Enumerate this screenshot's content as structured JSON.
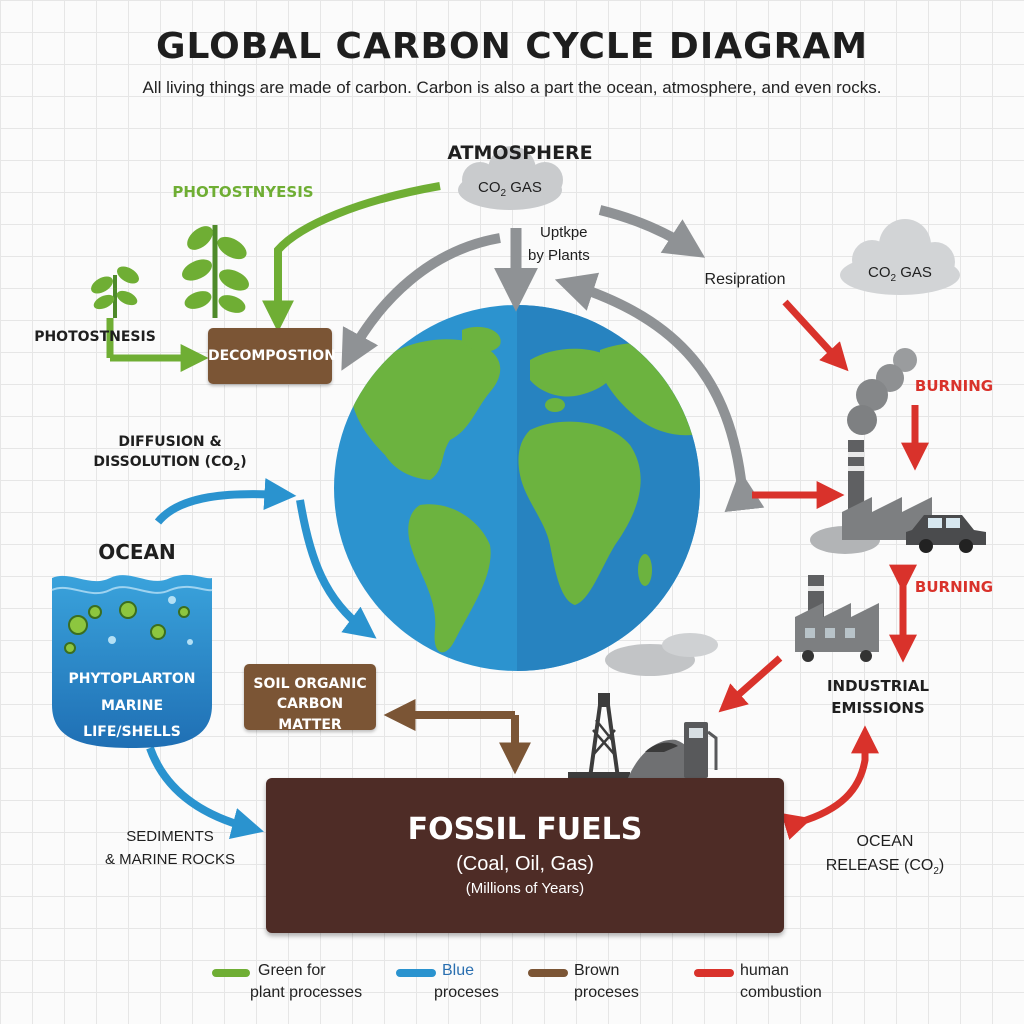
{
  "header": {
    "title": "GLOBAL CARBON CYCLE DIAGRAM",
    "subtitle": "All living things are made of carbon. Carbon is also a part the ocean, atmosphere, and even rocks."
  },
  "atmosphere": {
    "label": "ATMOSPHERE",
    "cloud_prefix": "CO",
    "cloud_sub": "2",
    "cloud_suffix": " GAS"
  },
  "right_cloud": {
    "prefix": "CO",
    "sub": "2",
    "suffix": " GAS"
  },
  "labels": {
    "photosynthesis_top": "PHOTOSTNYESIS",
    "photosynthesis_left": "PHOTOSTNESIS",
    "decomposition": "DECOMPOSTION",
    "uptake_line1": "Uptkpe",
    "uptake_line2": "by Plants",
    "respiration": "Resipration",
    "burning_top": "BURNING",
    "burning_mid": "BURNING",
    "diffusion_line1": "DIFFUSION &",
    "diffusion_line2_prefix": "DISSOLUTION (CO",
    "diffusion_line2_sub": "2",
    "diffusion_line2_suffix": ")",
    "ocean": "OCEAN",
    "phytoplankton": "PHYTOPLARTON",
    "marine_life": "MARINE LIFE/SHELLS",
    "soil_line1": "SOIL ORGANIC",
    "soil_line2": "CARBON MATTER",
    "industrial_line1": "INDUSTRIAL",
    "industrial_line2": "EMISSIONS",
    "sediments_line1": "SEDIMENTS",
    "sediments_line2": "& MARINE ROCKS",
    "ocean_release_line1": "OCEAN",
    "ocean_release_line2_prefix": "RELEASE (CO",
    "ocean_release_line2_sub": "2",
    "ocean_release_line2_suffix": ")"
  },
  "fossil": {
    "title": "FOSSIL FUELS",
    "subtitle": "(Coal, Oil, Gas)",
    "note": "(Millions of Years)"
  },
  "legend": [
    {
      "line1": "Green for",
      "line2": "plant processes",
      "color": "#6fae34"
    },
    {
      "line1": "Blue",
      "line2": "proceses",
      "color": "#2a93cf"
    },
    {
      "line1": "Brown",
      "line2": "proceses",
      "color": "#7b5535"
    },
    {
      "line1": "human",
      "line2": "combustion",
      "color": "#d9322b"
    }
  ],
  "colors": {
    "green": "#6fae34",
    "blue": "#2a93cf",
    "brown": "#7b5535",
    "red": "#d9322b",
    "gray": "#8f9295",
    "fossil": "#4e2c26"
  },
  "icons": [
    "plant-icon",
    "cloud-icon",
    "earth-globe-icon",
    "factory-icon",
    "car-icon",
    "oil-derrick-icon",
    "fuel-pump-icon",
    "coal-pile-icon",
    "smoke-icon",
    "phytoplankton-icon"
  ]
}
